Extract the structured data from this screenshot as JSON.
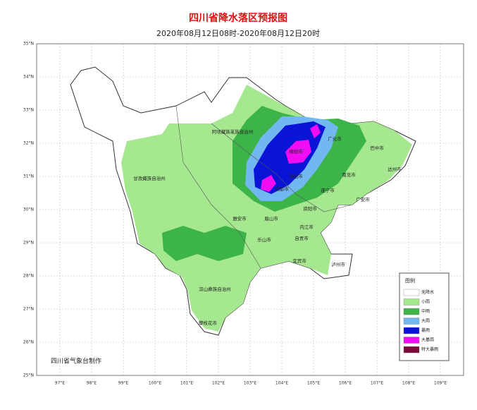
{
  "map": {
    "title": "四川省降水落区预报图",
    "subtitle": "2020年08月12日08时-2020年08月12日20时",
    "lat_labels": [
      "35°N",
      "34°N",
      "33°N",
      "32°N",
      "31°N",
      "30°N",
      "29°N",
      "28°N",
      "27°N",
      "26°N",
      "25°N"
    ],
    "lon_labels": [
      "97°E",
      "98°E",
      "99°E",
      "100°E",
      "101°E",
      "102°E",
      "103°E",
      "104°E",
      "105°E",
      "106°E",
      "107°E",
      "108°E",
      "109°E"
    ],
    "places": [
      {
        "name": "阿坝藏族羌族自治州"
      },
      {
        "name": "甘孜藏族自治州"
      },
      {
        "name": "广元市"
      },
      {
        "name": "巴中市"
      },
      {
        "name": "达州市"
      },
      {
        "name": "绵阳市"
      },
      {
        "name": "南充市"
      },
      {
        "name": "德阳市"
      },
      {
        "name": "成都市"
      },
      {
        "name": "遂宁市"
      },
      {
        "name": "广安市"
      },
      {
        "name": "资阳市"
      },
      {
        "name": "雅安市"
      },
      {
        "name": "眉山市"
      },
      {
        "name": "内江市"
      },
      {
        "name": "乐山市"
      },
      {
        "name": "自贡市"
      },
      {
        "name": "宜宾市"
      },
      {
        "name": "泸州市"
      },
      {
        "name": "凉山彝族自治州"
      },
      {
        "name": "攀枝花市"
      }
    ],
    "legend": {
      "title": "图例",
      "items": [
        {
          "label": "无降水",
          "color": "#ffffff"
        },
        {
          "label": "小雨",
          "color": "#a6e88f"
        },
        {
          "label": "中雨",
          "color": "#3db44a"
        },
        {
          "label": "大雨",
          "color": "#72b8f0"
        },
        {
          "label": "暴雨",
          "color": "#0a14d6"
        },
        {
          "label": "大暴雨",
          "color": "#f20cf2"
        },
        {
          "label": "特大暴雨",
          "color": "#7a0a3c"
        }
      ]
    },
    "credit": "四川省气象台制作"
  }
}
